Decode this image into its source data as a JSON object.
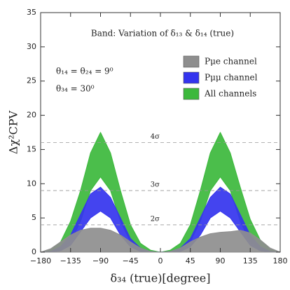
{
  "chart_data": {
    "type": "band",
    "annotations": [
      "Band: Variation of δ₁₃ & δ₁₄ (true)",
      "θ₁₄ = θ₂₄ = 9⁰",
      "θ₃₄ = 30⁰"
    ],
    "xlabel": "δ₃₄ (true)[degree]",
    "ylabel": "Δχ²CPV",
    "x": [
      -180,
      -165,
      -150,
      -135,
      -120,
      -105,
      -90,
      -75,
      -60,
      -45,
      -30,
      -15,
      0,
      15,
      30,
      45,
      60,
      75,
      90,
      105,
      120,
      135,
      150,
      165,
      180
    ],
    "series": [
      {
        "name": "Pμe channel",
        "color": "#8e8e8e",
        "upper": [
          0,
          0.5,
          1.5,
          2.5,
          3.2,
          3.5,
          3.5,
          3.2,
          2.5,
          1.5,
          0.6,
          0.1,
          0,
          0.1,
          0.6,
          1.5,
          2.2,
          2.7,
          2.9,
          3,
          3.2,
          2.8,
          1.8,
          0.6,
          0
        ],
        "lower": [
          0,
          0,
          0,
          0,
          0,
          0,
          0,
          0,
          0,
          0,
          0,
          0,
          0,
          0,
          0,
          0,
          0,
          0,
          0,
          0,
          0,
          0,
          0,
          0,
          0
        ]
      },
      {
        "name": "Pμμ channel",
        "color": "#3434ee",
        "upper": [
          0,
          0.1,
          0.8,
          2.5,
          5.5,
          8.5,
          9.5,
          8,
          5,
          2,
          0.6,
          0.1,
          0,
          0.1,
          0.6,
          2,
          5,
          8,
          9.5,
          8.5,
          5.5,
          2.5,
          0.8,
          0.1,
          0
        ],
        "lower": [
          0,
          0,
          0.2,
          1,
          3,
          5,
          6,
          5,
          2.5,
          0.8,
          0.1,
          0,
          0,
          0,
          0.1,
          0.8,
          2.5,
          5,
          6,
          5,
          3,
          1,
          0.2,
          0,
          0
        ]
      },
      {
        "name": "All channels",
        "color": "#3cb83c",
        "upper": [
          0,
          0.3,
          1.5,
          4.5,
          9,
          14.5,
          17.5,
          14.5,
          9,
          4,
          1.3,
          0.3,
          0,
          0.3,
          1.3,
          4,
          9,
          14.5,
          17.5,
          14.5,
          9.5,
          4.8,
          1.8,
          0.4,
          0
        ],
        "lower": [
          0,
          0,
          0.3,
          1.5,
          4.5,
          9,
          11,
          9,
          4.5,
          1.5,
          0.3,
          0,
          0,
          0,
          0.3,
          1.5,
          4.5,
          9,
          11,
          9,
          4.5,
          1.5,
          0.3,
          0,
          0
        ]
      }
    ],
    "reference_lines": [
      {
        "value": 4,
        "label": "2σ"
      },
      {
        "value": 9,
        "label": "3σ"
      },
      {
        "value": 16,
        "label": "4σ"
      }
    ],
    "xlim": [
      -180,
      180
    ],
    "xticks": [
      {
        "value": -180,
        "label": "−180"
      },
      {
        "value": -135,
        "label": "−135"
      },
      {
        "value": -90,
        "label": "−90"
      },
      {
        "value": -45,
        "label": "−45"
      },
      0,
      45,
      90,
      135,
      180
    ],
    "ylim": [
      0,
      35
    ],
    "yticks": [
      0,
      5,
      10,
      15,
      20,
      25,
      30,
      35
    ],
    "legend": "upper right"
  }
}
